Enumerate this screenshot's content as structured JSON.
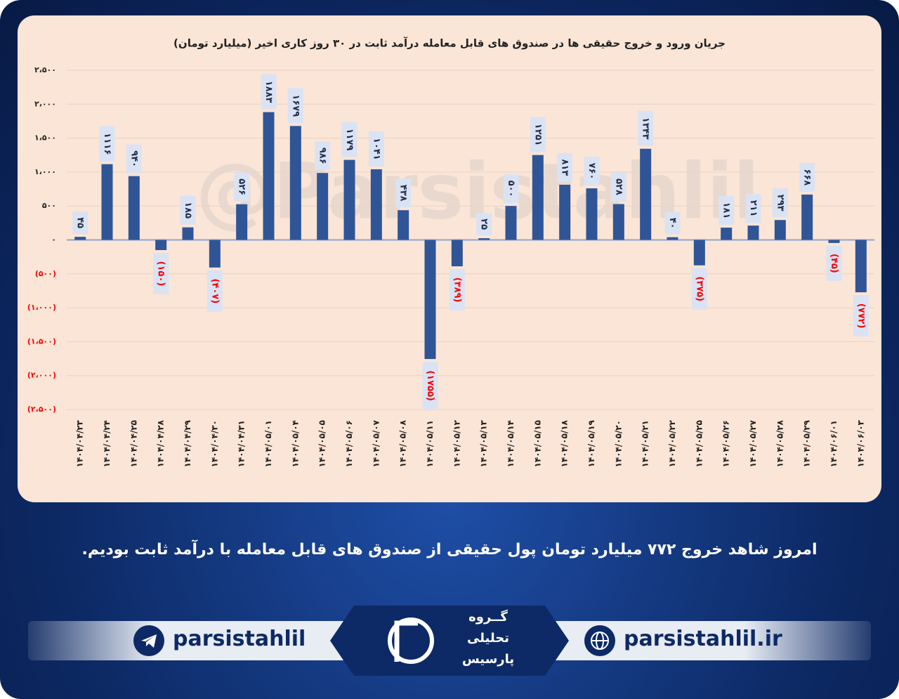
{
  "chart_data": {
    "type": "bar",
    "title": "جریان ورود و خروج حقیقی ها در صندوق های قابل معامله درآمد ثابت در ۳۰ روز کاری اخیر (میلیارد تومان)",
    "watermark": "@Parsistahlil",
    "categories": [
      "۱۴۰۴/۰۴/۲۳",
      "۱۴۰۴/۰۴/۲۴",
      "۱۴۰۴/۰۴/۲۵",
      "۱۴۰۴/۰۴/۲۸",
      "۱۴۰۴/۰۴/۲۹",
      "۱۴۰۴/۰۴/۳۰",
      "۱۴۰۴/۰۴/۳۱",
      "۱۴۰۴/۰۵/۰۱",
      "۱۴۰۴/۰۵/۰۴",
      "۱۴۰۴/۰۵/۰۵",
      "۱۴۰۴/۰۵/۰۶",
      "۱۴۰۴/۰۵/۰۷",
      "۱۴۰۴/۰۵/۰۸",
      "۱۴۰۴/۰۵/۱۱",
      "۱۴۰۴/۰۵/۱۲",
      "۱۴۰۴/۰۵/۱۳",
      "۱۴۰۴/۰۵/۱۴",
      "۱۴۰۴/۰۵/۱۵",
      "۱۴۰۴/۰۵/۱۸",
      "۱۴۰۴/۰۵/۱۹",
      "۱۴۰۴/۰۵/۲۰",
      "۱۴۰۴/۰۵/۲۱",
      "۱۴۰۴/۰۵/۲۲",
      "۱۴۰۴/۰۵/۲۵",
      "۱۴۰۴/۰۵/۲۶",
      "۱۴۰۴/۰۵/۲۷",
      "۱۴۰۴/۰۵/۲۸",
      "۱۴۰۴/۰۵/۲۹",
      "۱۴۰۴/۰۶/۰۱",
      "۱۴۰۴/۰۶/۰۳"
    ],
    "values": [
      45,
      1116,
      940,
      -150,
      185,
      -407,
      526,
      1883,
      1679,
      986,
      1179,
      1041,
      438,
      -1755,
      -389,
      25,
      500,
      1251,
      813,
      760,
      528,
      1343,
      40,
      -375,
      181,
      211,
      293,
      668,
      -45,
      -772
    ],
    "value_labels": [
      "۴۵",
      "۱۱۱۶",
      "۹۴۰",
      "(۱۵۰)",
      "۱۸۵",
      "(۴۰۷)",
      "۵۲۶",
      "۱۸۸۳",
      "۱۶۷۹",
      "۹۸۶",
      "۱۱۷۹",
      "۱۰۴۱",
      "۴۳۸",
      "(۱۷۵۵)",
      "(۳۸۹)",
      "۲۵",
      "۵۰۰",
      "۱۲۵۱",
      "۸۱۳",
      "۷۶۰",
      "۵۲۸",
      "۱۳۴۳",
      "۴۰",
      "(۳۷۵)",
      "۱۸۱",
      "۲۱۱",
      "۲۹۳",
      "۶۶۸",
      "(۴۵)",
      "(۷۷۲)"
    ],
    "color": "#2f5597",
    "label_color": "#1f2d4d",
    "negative_label_color": "#ff0000",
    "ylim": [
      -2500,
      2500
    ],
    "yticks": [
      {
        "value": -2500,
        "label": "(۲،۵۰۰)"
      },
      {
        "value": -2000,
        "label": "(۲،۰۰۰)"
      },
      {
        "value": -1500,
        "label": "(۱،۵۰۰)"
      },
      {
        "value": -1000,
        "label": "(۱،۰۰۰)"
      },
      {
        "value": -500,
        "label": "(۵۰۰)"
      },
      {
        "value": 0,
        "label": "۰"
      },
      {
        "value": 500,
        "label": "۵۰۰"
      },
      {
        "value": 1000,
        "label": "۱،۰۰۰"
      },
      {
        "value": 1500,
        "label": "۱،۵۰۰"
      },
      {
        "value": 2000,
        "label": "۲،۰۰۰"
      },
      {
        "value": 2500,
        "label": "۲،۵۰۰"
      }
    ],
    "grid": true
  },
  "caption": "امروز شاهد خروج ۷۷۲ میلیارد تومان پول حقیقی از صندوق های قابل معامله با درآمد ثابت بودیم.",
  "footer": {
    "telegram": "parsistahlil",
    "website": "parsistahlil.ir",
    "logo": [
      "گــروه",
      "تحلیلی",
      "پارسیس"
    ]
  }
}
